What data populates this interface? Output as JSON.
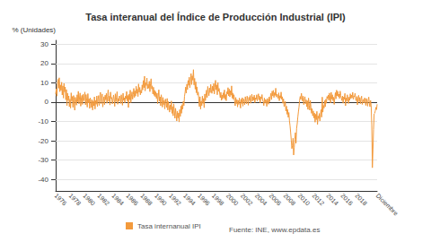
{
  "chart_data": {
    "type": "line",
    "title": "Tasa interanual del Índice de Producción Industrial (IPI)",
    "y_label": "% (Unidades)",
    "annotations": [
      "Fuente: INE, www.epdata.es"
    ],
    "categories": [
      "1976",
      null,
      null,
      null,
      null,
      null,
      null,
      null,
      null,
      null,
      null,
      null,
      null,
      null,
      null,
      null,
      null,
      null,
      null,
      null,
      null,
      null,
      null,
      null,
      "1978",
      null,
      null,
      null,
      null,
      null,
      null,
      null,
      null,
      null,
      null,
      null,
      null,
      null,
      null,
      null,
      null,
      null,
      null,
      null,
      null,
      null,
      null,
      null,
      "1980",
      null,
      null,
      null,
      null,
      null,
      null,
      null,
      null,
      null,
      null,
      null,
      null,
      null,
      null,
      null,
      null,
      null,
      null,
      null,
      null,
      null,
      null,
      null,
      "1982",
      null,
      null,
      null,
      null,
      null,
      null,
      null,
      null,
      null,
      null,
      null,
      null,
      null,
      null,
      null,
      null,
      null,
      null,
      null,
      null,
      null,
      null,
      null,
      "1984",
      null,
      null,
      null,
      null,
      null,
      null,
      null,
      null,
      null,
      null,
      null,
      null,
      null,
      null,
      null,
      null,
      null,
      null,
      null,
      null,
      null,
      null,
      null,
      "1986",
      null,
      null,
      null,
      null,
      null,
      null,
      null,
      null,
      null,
      null,
      null,
      null,
      null,
      null,
      null,
      null,
      null,
      null,
      null,
      null,
      null,
      null,
      null,
      "1988",
      null,
      null,
      null,
      null,
      null,
      null,
      null,
      null,
      null,
      null,
      null,
      null,
      null,
      null,
      null,
      null,
      null,
      null,
      null,
      null,
      null,
      null,
      null,
      "1990",
      null,
      null,
      null,
      null,
      null,
      null,
      null,
      null,
      null,
      null,
      null,
      null,
      null,
      null,
      null,
      null,
      null,
      null,
      null,
      null,
      null,
      null,
      null,
      "1992",
      null,
      null,
      null,
      null,
      null,
      null,
      null,
      null,
      null,
      null,
      null,
      null,
      null,
      null,
      null,
      null,
      null,
      null,
      null,
      null,
      null,
      null,
      null,
      "1994",
      null,
      null,
      null,
      null,
      null,
      null,
      null,
      null,
      null,
      null,
      null,
      null,
      null,
      null,
      null,
      null,
      null,
      null,
      null,
      null,
      null,
      null,
      null,
      "1996",
      null,
      null,
      null,
      null,
      null,
      null,
      null,
      null,
      null,
      null,
      null,
      null,
      null,
      null,
      null,
      null,
      null,
      null,
      null,
      null,
      null,
      null,
      null,
      "1998",
      null,
      null,
      null,
      null,
      null,
      null,
      null,
      null,
      null,
      null,
      null,
      null,
      null,
      null,
      null,
      null,
      null,
      null,
      null,
      null,
      null,
      null,
      null,
      "2000",
      null,
      null,
      null,
      null,
      null,
      null,
      null,
      null,
      null,
      null,
      null,
      null,
      null,
      null,
      null,
      null,
      null,
      null,
      null,
      null,
      null,
      null,
      null,
      "2002",
      null,
      null,
      null,
      null,
      null,
      null,
      null,
      null,
      null,
      null,
      null,
      null,
      null,
      null,
      null,
      null,
      null,
      null,
      null,
      null,
      null,
      null,
      null,
      "2004",
      null,
      null,
      null,
      null,
      null,
      null,
      null,
      null,
      null,
      null,
      null,
      null,
      null,
      null,
      null,
      null,
      null,
      null,
      null,
      null,
      null,
      null,
      null,
      "2006",
      null,
      null,
      null,
      null,
      null,
      null,
      null,
      null,
      null,
      null,
      null,
      null,
      null,
      null,
      null,
      null,
      null,
      null,
      null,
      null,
      null,
      null,
      null,
      "2008",
      null,
      null,
      null,
      null,
      null,
      null,
      null,
      null,
      null,
      null,
      null,
      null,
      null,
      null,
      null,
      null,
      null,
      null,
      null,
      null,
      null,
      null,
      null,
      "2010",
      null,
      null,
      null,
      null,
      null,
      null,
      null,
      null,
      null,
      null,
      null,
      null,
      null,
      null,
      null,
      null,
      null,
      null,
      null,
      null,
      null,
      null,
      null,
      "2012",
      null,
      null,
      null,
      null,
      null,
      null,
      null,
      null,
      null,
      null,
      null,
      null,
      null,
      null,
      null,
      null,
      null,
      null,
      null,
      null,
      null,
      null,
      null,
      "2014",
      null,
      null,
      null,
      null,
      null,
      null,
      null,
      null,
      null,
      null,
      null,
      null,
      null,
      null,
      null,
      null,
      null,
      null,
      null,
      null,
      null,
      null,
      null,
      "2016",
      null,
      null,
      null,
      null,
      null,
      null,
      null,
      null,
      null,
      null,
      null,
      null,
      null,
      null,
      null,
      null,
      null,
      null,
      null,
      null,
      null,
      null,
      null,
      "2018",
      null,
      null,
      null,
      null,
      null,
      null,
      null,
      null,
      null,
      null,
      null,
      null,
      null,
      null,
      null,
      null,
      null,
      null,
      null,
      null,
      null,
      null,
      null,
      null,
      null,
      null,
      null,
      null,
      null,
      null,
      null,
      null,
      null,
      null,
      "Diciembre"
    ],
    "series": [
      {
        "name": "Tasa internanual IPI",
        "color": "#f39a3c",
        "values": [
          4.2,
          6.8,
          3.1,
          9.5,
          11.8,
          7.2,
          12.6,
          5.4,
          8.9,
          6.1,
          10.3,
          3.7,
          8.4,
          2.1,
          9.7,
          5.3,
          7.8,
          1.2,
          6.5,
          -1.8,
          4.6,
          0.9,
          3.2,
          -2.4,
          1.5,
          -3.1,
          4.8,
          0.6,
          2.9,
          -2.7,
          3.4,
          1.1,
          -4.2,
          2.5,
          0.3,
          -1.6,
          3.8,
          0.2,
          5.6,
          -0.9,
          2.3,
          4.7,
          -2.1,
          1.8,
          3.5,
          -1.2,
          4.1,
          0.7,
          2.6,
          5.2,
          -1.4,
          3.9,
          0.8,
          -2.6,
          4.4,
          -0.5,
          1.7,
          -3.3,
          2.2,
          0.4,
          -2.8,
          1.3,
          -4.1,
          0.6,
          -1.9,
          2.7,
          -3.6,
          0.9,
          -1.1,
          3.2,
          -2.3,
          1.6,
          3.4,
          -1.7,
          2.1,
          5.1,
          -0.8,
          1.9,
          4.2,
          -2.5,
          0.7,
          2.8,
          -1.3,
          3.6,
          1.2,
          4.5,
          -0.6,
          2.9,
          6.3,
          0.4,
          3.1,
          -1.5,
          5.2,
          1.8,
          2.4,
          -0.9,
          0.8,
          3.7,
          1.5,
          -2.2,
          4.3,
          0.2,
          2.6,
          5.4,
          -1.1,
          1.9,
          0.5,
          3.2,
          2.1,
          -0.7,
          3.8,
          1.4,
          -1.6,
          4.6,
          0.9,
          2.3,
          -0.4,
          3.1,
          1.7,
          5.5,
          0.6,
          3.4,
          -2.8,
          4.1,
          1.2,
          6.2,
          -0.3,
          2.8,
          5.3,
          1.5,
          3.9,
          7.1,
          2.4,
          5.8,
          3.1,
          8.2,
          4.5,
          6.7,
          2.9,
          9.4,
          5.1,
          7.6,
          3.8,
          6.2,
          4.7,
          8.9,
          6.3,
          11.2,
          7.5,
          13.4,
          5.8,
          10.1,
          8.6,
          12.5,
          6.9,
          9.3,
          7.2,
          10.8,
          5.4,
          9.6,
          12.1,
          6.8,
          8.4,
          4.2,
          7.7,
          3.5,
          6.1,
          2.8,
          5.3,
          1.9,
          4.6,
          -0.8,
          3.2,
          6.4,
          0.5,
          2.7,
          -1.9,
          3.8,
          1.1,
          -2.6,
          2.4,
          -1.3,
          0.8,
          -3.5,
          1.6,
          -0.4,
          -2.8,
          1.9,
          -4.1,
          0.3,
          -1.7,
          -5.2,
          -1.4,
          -3.9,
          0.6,
          -5.8,
          -2.3,
          -7.1,
          -0.9,
          -4.6,
          -8.4,
          -3.2,
          -6.5,
          -9.8,
          -4.7,
          -8.2,
          -5.6,
          -10.3,
          -3.9,
          -7.4,
          -2.1,
          -5.8,
          -1.3,
          -3.6,
          0.4,
          -1.8,
          2.9,
          5.1,
          7.8,
          4.6,
          9.3,
          6.5,
          11.2,
          8.7,
          12.9,
          7.4,
          10.6,
          14.8,
          9.1,
          13.6,
          11.4,
          16.8,
          8.9,
          12.3,
          6.7,
          10.5,
          4.8,
          7.9,
          3.6,
          5.2,
          1.4,
          -2.3,
          2.8,
          -3.6,
          0.5,
          -1.8,
          3.1,
          -0.7,
          1.9,
          -2.9,
          4.2,
          0.8,
          3.6,
          6.2,
          2.4,
          8.1,
          5.7,
          3.3,
          7.4,
          4.9,
          9.2,
          6.1,
          4.5,
          8.3,
          5.8,
          9.6,
          4.2,
          7.7,
          11.3,
          6.4,
          8.9,
          3.8,
          10.2,
          5.5,
          7.1,
          4.6,
          2.3,
          5.1,
          0.9,
          3.7,
          1.6,
          4.8,
          2.2,
          6.3,
          1.4,
          3.9,
          0.7,
          5.4,
          4.1,
          7.5,
          3.2,
          6.8,
          2.7,
          5.9,
          3.6,
          8.4,
          2.1,
          4.7,
          1.5,
          3.8,
          0.6,
          -1.9,
          2.4,
          -0.8,
          1.3,
          -2.5,
          0.9,
          -1.2,
          2.1,
          -0.4,
          -3.1,
          1.5,
          -0.7,
          2.3,
          -2.1,
          1.6,
          0.4,
          -1.4,
          2.8,
          0.2,
          -0.9,
          3.1,
          1.2,
          -1.6,
          2.5,
          0.8,
          3.4,
          -0.6,
          1.9,
          4.1,
          0.5,
          2.7,
          1.1,
          3.6,
          -0.3,
          2.2,
          1.4,
          3.8,
          0.6,
          2.5,
          4.3,
          1.2,
          3.1,
          -0.5,
          2.6,
          1.7,
          3.9,
          0.9,
          0.3,
          -1.8,
          2.1,
          -0.6,
          1.4,
          0.8,
          -2.2,
          1.9,
          0.5,
          -1.1,
          2.7,
          0.2,
          2.8,
          4.6,
          1.3,
          5.7,
          3.2,
          6.1,
          2.4,
          4.9,
          3.5,
          7.2,
          2.6,
          4.1,
          3.7,
          1.9,
          4.8,
          0.7,
          3.3,
          2.1,
          5.2,
          1.4,
          2.8,
          -0.6,
          1.7,
          -2.3,
          -1.8,
          0.4,
          -4.6,
          -2.1,
          -6.3,
          -3.8,
          -7.9,
          -5.4,
          -9.7,
          -12.3,
          -15.8,
          -19.6,
          -24.1,
          -22.5,
          -18.7,
          -27.4,
          -23.6,
          -19.2,
          -15.8,
          -21.3,
          -13.6,
          -11.2,
          -7.8,
          -5.1,
          -2.6,
          0.8,
          2.9,
          1.4,
          4.6,
          2.2,
          0.5,
          3.1,
          -1.3,
          1.7,
          2.8,
          -0.9,
          1.2,
          -2.4,
          0.7,
          -3.8,
          2.1,
          -1.6,
          -4.2,
          0.9,
          -2.7,
          -5.8,
          -3.4,
          -7.1,
          -4.6,
          -8.2,
          -5.7,
          -10.4,
          -6.3,
          -9.1,
          -4.8,
          -11.6,
          -7.2,
          -8.5,
          -5.9,
          -9.8,
          -6.4,
          -3.9,
          -7.8,
          2.6,
          -5.2,
          -1.7,
          -3.1,
          0.8,
          -2.4,
          1.5,
          -0.6,
          2.9,
          1.8,
          3.6,
          0.9,
          4.7,
          2.3,
          -0.4,
          5.1,
          1.6,
          3.8,
          0.7,
          2.5,
          -1.2,
          2.4,
          4.9,
          1.7,
          6.2,
          3.3,
          5.6,
          2.8,
          4.1,
          1.9,
          5.7,
          3.4,
          2.2,
          0.8,
          3.2,
          -0.6,
          2.7,
          1.4,
          4.5,
          -1.9,
          2.1,
          0.6,
          3.8,
          1.2,
          -0.7,
          2.6,
          0.9,
          4.3,
          1.8,
          3.7,
          2.2,
          5.1,
          1.5,
          3.2,
          2.8,
          4.6,
          1.3,
          0.7,
          2.9,
          -1.4,
          1.8,
          3.5,
          0.2,
          2.4,
          -0.8,
          1.6,
          3.1,
          -1.2,
          0.6,
          1.4,
          -0.5,
          2.2,
          0.8,
          -1.7,
          1.9,
          0.4,
          -2.1,
          1.1,
          2.6,
          -0.9,
          -2.4,
          0.9,
          -1.8,
          -11.7,
          -34.0,
          -24.6,
          -14.2,
          -6.1,
          -5.8,
          -4.4,
          -2.7,
          -3.9,
          -1.1
        ]
      }
    ],
    "ylim": [
      -46,
      32
    ],
    "yticks": [
      -40,
      -30,
      -20,
      -10,
      0,
      10,
      20,
      30
    ],
    "grid": true,
    "legend": "bottom"
  }
}
